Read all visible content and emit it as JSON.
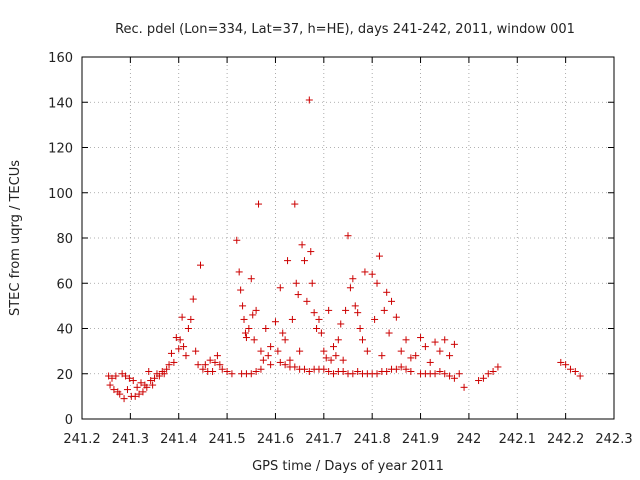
{
  "chart_data": {
    "type": "scatter",
    "title": "Rec. pdel (Lon=334, Lat=37, h=HE), days 241-242, 2011, window 001",
    "xlabel": "GPS time / Days of year 2011",
    "ylabel": "STEC from uqrg / TECUs",
    "xlim": [
      241.2,
      242.3
    ],
    "ylim": [
      0,
      160
    ],
    "xticks": [
      "241.2",
      "241.3",
      "241.4",
      "241.5",
      "241.6",
      "241.7",
      "241.8",
      "241.9",
      "242",
      "242.1",
      "242.2",
      "242.3"
    ],
    "yticks": [
      "0",
      "20",
      "40",
      "60",
      "80",
      "100",
      "120",
      "140",
      "160"
    ],
    "grid": true,
    "marker": "+",
    "color": "#cc0000",
    "points": [
      [
        241.255,
        19
      ],
      [
        241.258,
        15
      ],
      [
        241.262,
        18
      ],
      [
        241.266,
        13
      ],
      [
        241.27,
        19
      ],
      [
        241.274,
        12
      ],
      [
        241.278,
        11
      ],
      [
        241.283,
        20
      ],
      [
        241.287,
        9
      ],
      [
        241.29,
        19
      ],
      [
        241.294,
        13
      ],
      [
        241.298,
        18
      ],
      [
        241.302,
        10
      ],
      [
        241.306,
        17
      ],
      [
        241.31,
        10
      ],
      [
        241.314,
        14
      ],
      [
        241.318,
        11
      ],
      [
        241.322,
        16
      ],
      [
        241.326,
        12
      ],
      [
        241.33,
        15
      ],
      [
        241.334,
        14
      ],
      [
        241.338,
        21
      ],
      [
        241.342,
        17
      ],
      [
        241.346,
        15
      ],
      [
        241.35,
        18
      ],
      [
        241.355,
        20
      ],
      [
        241.36,
        19
      ],
      [
        241.366,
        21
      ],
      [
        241.37,
        20
      ],
      [
        241.375,
        22
      ],
      [
        241.38,
        24
      ],
      [
        241.385,
        29
      ],
      [
        241.39,
        25
      ],
      [
        241.395,
        36
      ],
      [
        241.4,
        31
      ],
      [
        241.403,
        35
      ],
      [
        241.407,
        45
      ],
      [
        241.41,
        32
      ],
      [
        241.415,
        28
      ],
      [
        241.42,
        40
      ],
      [
        241.425,
        44
      ],
      [
        241.43,
        53
      ],
      [
        241.435,
        30
      ],
      [
        241.44,
        24
      ],
      [
        241.445,
        68
      ],
      [
        241.45,
        22
      ],
      [
        241.455,
        24
      ],
      [
        241.465,
        26
      ],
      [
        241.475,
        25
      ],
      [
        241.48,
        28
      ],
      [
        241.485,
        24
      ],
      [
        241.52,
        79
      ],
      [
        241.525,
        65
      ],
      [
        241.528,
        57
      ],
      [
        241.532,
        50
      ],
      [
        241.535,
        44
      ],
      [
        241.538,
        38
      ],
      [
        241.54,
        36
      ],
      [
        241.545,
        40
      ],
      [
        241.55,
        62
      ],
      [
        241.553,
        46
      ],
      [
        241.556,
        35
      ],
      [
        241.56,
        48
      ],
      [
        241.565,
        95
      ],
      [
        241.57,
        30
      ],
      [
        241.575,
        26
      ],
      [
        241.58,
        40
      ],
      [
        241.585,
        28
      ],
      [
        241.59,
        32
      ],
      [
        241.6,
        43
      ],
      [
        241.605,
        30
      ],
      [
        241.61,
        58
      ],
      [
        241.615,
        38
      ],
      [
        241.62,
        35
      ],
      [
        241.625,
        70
      ],
      [
        241.63,
        26
      ],
      [
        241.635,
        44
      ],
      [
        241.64,
        95
      ],
      [
        241.643,
        60
      ],
      [
        241.647,
        55
      ],
      [
        241.65,
        30
      ],
      [
        241.655,
        77
      ],
      [
        241.66,
        70
      ],
      [
        241.665,
        52
      ],
      [
        241.67,
        141
      ],
      [
        241.673,
        74
      ],
      [
        241.676,
        60
      ],
      [
        241.68,
        47
      ],
      [
        241.685,
        40
      ],
      [
        241.69,
        44
      ],
      [
        241.695,
        38
      ],
      [
        241.7,
        30
      ],
      [
        241.705,
        27
      ],
      [
        241.71,
        48
      ],
      [
        241.715,
        26
      ],
      [
        241.72,
        32
      ],
      [
        241.725,
        28
      ],
      [
        241.73,
        35
      ],
      [
        241.735,
        42
      ],
      [
        241.74,
        26
      ],
      [
        241.745,
        48
      ],
      [
        241.75,
        81
      ],
      [
        241.755,
        58
      ],
      [
        241.76,
        62
      ],
      [
        241.765,
        50
      ],
      [
        241.77,
        47
      ],
      [
        241.775,
        40
      ],
      [
        241.78,
        35
      ],
      [
        241.785,
        65
      ],
      [
        241.79,
        30
      ],
      [
        241.8,
        64
      ],
      [
        241.805,
        44
      ],
      [
        241.81,
        60
      ],
      [
        241.815,
        72
      ],
      [
        241.82,
        28
      ],
      [
        241.825,
        48
      ],
      [
        241.83,
        56
      ],
      [
        241.835,
        38
      ],
      [
        241.84,
        52
      ],
      [
        241.85,
        45
      ],
      [
        241.86,
        30
      ],
      [
        241.87,
        35
      ],
      [
        241.88,
        27
      ],
      [
        241.89,
        28
      ],
      [
        241.9,
        36
      ],
      [
        241.91,
        32
      ],
      [
        241.92,
        25
      ],
      [
        241.93,
        34
      ],
      [
        241.94,
        30
      ],
      [
        241.95,
        35
      ],
      [
        241.96,
        28
      ],
      [
        241.97,
        33
      ],
      [
        241.98,
        20
      ],
      [
        241.99,
        14
      ],
      [
        242.02,
        17
      ],
      [
        242.03,
        18
      ],
      [
        242.04,
        20
      ],
      [
        242.05,
        21
      ],
      [
        242.06,
        23
      ],
      [
        242.19,
        25
      ],
      [
        242.2,
        24
      ],
      [
        242.21,
        22
      ],
      [
        242.22,
        21
      ],
      [
        242.23,
        19
      ],
      [
        241.46,
        21
      ],
      [
        241.47,
        21
      ],
      [
        241.49,
        22
      ],
      [
        241.5,
        21
      ],
      [
        241.51,
        20
      ],
      [
        241.53,
        20
      ],
      [
        241.54,
        20
      ],
      [
        241.55,
        20
      ],
      [
        241.56,
        21
      ],
      [
        241.57,
        22
      ],
      [
        241.59,
        24
      ],
      [
        241.61,
        25
      ],
      [
        241.62,
        24
      ],
      [
        241.63,
        23
      ],
      [
        241.64,
        23
      ],
      [
        241.65,
        22
      ],
      [
        241.66,
        22
      ],
      [
        241.67,
        21
      ],
      [
        241.68,
        22
      ],
      [
        241.69,
        22
      ],
      [
        241.7,
        22
      ],
      [
        241.71,
        21
      ],
      [
        241.72,
        20
      ],
      [
        241.73,
        21
      ],
      [
        241.74,
        21
      ],
      [
        241.75,
        20
      ],
      [
        241.76,
        20
      ],
      [
        241.77,
        21
      ],
      [
        241.78,
        20
      ],
      [
        241.79,
        20
      ],
      [
        241.8,
        20
      ],
      [
        241.81,
        20
      ],
      [
        241.82,
        21
      ],
      [
        241.83,
        21
      ],
      [
        241.84,
        22
      ],
      [
        241.85,
        22
      ],
      [
        241.86,
        23
      ],
      [
        241.87,
        22
      ],
      [
        241.88,
        21
      ],
      [
        241.9,
        20
      ],
      [
        241.91,
        20
      ],
      [
        241.92,
        20
      ],
      [
        241.93,
        20
      ],
      [
        241.94,
        21
      ],
      [
        241.95,
        20
      ],
      [
        241.96,
        19
      ],
      [
        241.97,
        18
      ]
    ]
  }
}
